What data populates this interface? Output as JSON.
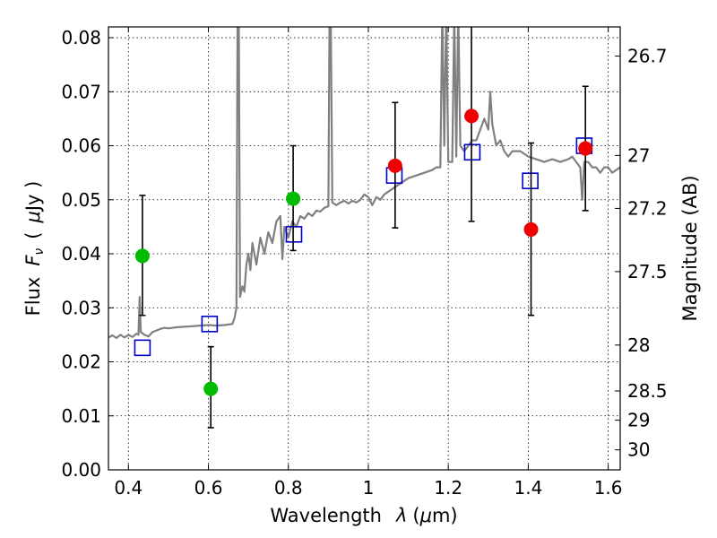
{
  "chart_data": {
    "type": "scatter",
    "title": "",
    "xlabel": "Wavelength",
    "xlabel_symbol": "λ",
    "xlabel_unit_open": "(",
    "xlabel_unit_mu": "μ",
    "xlabel_unit_rest": "m)",
    "ylabel": "Flux",
    "ylabel_symbol": "F",
    "ylabel_subscript": "ν",
    "ylabel_unit_open": "(",
    "ylabel_unit_mu": "μ",
    "ylabel_unit_rest": "Jy )",
    "y2label": "Magnitude (AB)",
    "xlim": [
      0.35,
      1.63
    ],
    "ylim": [
      0.0,
      0.082
    ],
    "grid": true,
    "xticks": [
      {
        "value": 0.4,
        "label": "0.4"
      },
      {
        "value": 0.6,
        "label": "0.6"
      },
      {
        "value": 0.8,
        "label": "0.8"
      },
      {
        "value": 1.0,
        "label": "1"
      },
      {
        "value": 1.2,
        "label": "1.2"
      },
      {
        "value": 1.4,
        "label": "1.4"
      },
      {
        "value": 1.6,
        "label": "1.6"
      }
    ],
    "yticks": [
      {
        "value": 0.0,
        "label": "0.00"
      },
      {
        "value": 0.01,
        "label": "0.01"
      },
      {
        "value": 0.02,
        "label": "0.02"
      },
      {
        "value": 0.03,
        "label": "0.03"
      },
      {
        "value": 0.04,
        "label": "0.04"
      },
      {
        "value": 0.05,
        "label": "0.05"
      },
      {
        "value": 0.06,
        "label": "0.06"
      },
      {
        "value": 0.07,
        "label": "0.07"
      },
      {
        "value": 0.08,
        "label": "0.08"
      }
    ],
    "magnitude_ticks": [
      {
        "label": "26.7",
        "flux": 0.0766
      },
      {
        "label": "27",
        "flux": 0.0582
      },
      {
        "label": "27.2",
        "flux": 0.0484
      },
      {
        "label": "27.5",
        "flux": 0.0367
      },
      {
        "label": "28",
        "flux": 0.0231
      },
      {
        "label": "28.5",
        "flux": 0.0146
      },
      {
        "label": "29",
        "flux": 0.0092
      },
      {
        "label": "30",
        "flux": 0.0037
      }
    ],
    "series": [
      {
        "kind": "spectrum",
        "color": "#808080",
        "points": [
          [
            0.35,
            0.0245
          ],
          [
            0.36,
            0.0249
          ],
          [
            0.37,
            0.0244
          ],
          [
            0.38,
            0.025
          ],
          [
            0.39,
            0.0245
          ],
          [
            0.4,
            0.025
          ],
          [
            0.41,
            0.0246
          ],
          [
            0.42,
            0.0252
          ],
          [
            0.425,
            0.025
          ],
          [
            0.428,
            0.032
          ],
          [
            0.431,
            0.0255
          ],
          [
            0.44,
            0.025
          ],
          [
            0.45,
            0.0247
          ],
          [
            0.46,
            0.0255
          ],
          [
            0.47,
            0.0258
          ],
          [
            0.48,
            0.0261
          ],
          [
            0.49,
            0.0263
          ],
          [
            0.5,
            0.0262
          ],
          [
            0.52,
            0.0264
          ],
          [
            0.54,
            0.0265
          ],
          [
            0.56,
            0.0266
          ],
          [
            0.58,
            0.0267
          ],
          [
            0.6,
            0.0268
          ],
          [
            0.62,
            0.0267
          ],
          [
            0.64,
            0.0268
          ],
          [
            0.66,
            0.027
          ],
          [
            0.665,
            0.028
          ],
          [
            0.67,
            0.03
          ],
          [
            0.673,
            0.085
          ],
          [
            0.676,
            0.085
          ],
          [
            0.679,
            0.032
          ],
          [
            0.685,
            0.034
          ],
          [
            0.69,
            0.033
          ],
          [
            0.695,
            0.038
          ],
          [
            0.7,
            0.04
          ],
          [
            0.705,
            0.037
          ],
          [
            0.71,
            0.042
          ],
          [
            0.72,
            0.038
          ],
          [
            0.73,
            0.043
          ],
          [
            0.74,
            0.04
          ],
          [
            0.75,
            0.044
          ],
          [
            0.76,
            0.042
          ],
          [
            0.77,
            0.046
          ],
          [
            0.78,
            0.047
          ],
          [
            0.785,
            0.039
          ],
          [
            0.79,
            0.045
          ],
          [
            0.8,
            0.043
          ],
          [
            0.81,
            0.046
          ],
          [
            0.82,
            0.045
          ],
          [
            0.83,
            0.047
          ],
          [
            0.84,
            0.0465
          ],
          [
            0.85,
            0.0475
          ],
          [
            0.86,
            0.047
          ],
          [
            0.87,
            0.048
          ],
          [
            0.88,
            0.0478
          ],
          [
            0.89,
            0.0485
          ],
          [
            0.9,
            0.0488
          ],
          [
            0.903,
            0.085
          ],
          [
            0.906,
            0.085
          ],
          [
            0.91,
            0.0495
          ],
          [
            0.92,
            0.049
          ],
          [
            0.93,
            0.0495
          ],
          [
            0.94,
            0.0498
          ],
          [
            0.95,
            0.0493
          ],
          [
            0.96,
            0.0498
          ],
          [
            0.97,
            0.0495
          ],
          [
            0.98,
            0.05
          ],
          [
            0.99,
            0.051
          ],
          [
            1.0,
            0.0505
          ],
          [
            1.01,
            0.049
          ],
          [
            1.02,
            0.0505
          ],
          [
            1.03,
            0.05
          ],
          [
            1.04,
            0.051
          ],
          [
            1.05,
            0.0515
          ],
          [
            1.06,
            0.052
          ],
          [
            1.07,
            0.0525
          ],
          [
            1.08,
            0.053
          ],
          [
            1.09,
            0.0535
          ],
          [
            1.1,
            0.054
          ],
          [
            1.12,
            0.0545
          ],
          [
            1.14,
            0.055
          ],
          [
            1.16,
            0.0555
          ],
          [
            1.17,
            0.056
          ],
          [
            1.18,
            0.056
          ],
          [
            1.185,
            0.085
          ],
          [
            1.19,
            0.06
          ],
          [
            1.195,
            0.085
          ],
          [
            1.2,
            0.057
          ],
          [
            1.21,
            0.057
          ],
          [
            1.215,
            0.085
          ],
          [
            1.22,
            0.058
          ],
          [
            1.225,
            0.085
          ],
          [
            1.23,
            0.06
          ],
          [
            1.24,
            0.059
          ],
          [
            1.25,
            0.06
          ],
          [
            1.26,
            0.061
          ],
          [
            1.27,
            0.061
          ],
          [
            1.28,
            0.063
          ],
          [
            1.29,
            0.065
          ],
          [
            1.295,
            0.064
          ],
          [
            1.3,
            0.063
          ],
          [
            1.305,
            0.07
          ],
          [
            1.31,
            0.064
          ],
          [
            1.32,
            0.06
          ],
          [
            1.33,
            0.061
          ],
          [
            1.34,
            0.059
          ],
          [
            1.35,
            0.058
          ],
          [
            1.36,
            0.059
          ],
          [
            1.38,
            0.059
          ],
          [
            1.4,
            0.058
          ],
          [
            1.42,
            0.0575
          ],
          [
            1.44,
            0.057
          ],
          [
            1.46,
            0.0575
          ],
          [
            1.48,
            0.057
          ],
          [
            1.5,
            0.0575
          ],
          [
            1.51,
            0.058
          ],
          [
            1.52,
            0.057
          ],
          [
            1.53,
            0.056
          ],
          [
            1.535,
            0.05
          ],
          [
            1.54,
            0.057
          ],
          [
            1.55,
            0.057
          ],
          [
            1.56,
            0.056
          ],
          [
            1.57,
            0.056
          ],
          [
            1.58,
            0.055
          ],
          [
            1.59,
            0.056
          ],
          [
            1.6,
            0.056
          ],
          [
            1.61,
            0.055
          ],
          [
            1.62,
            0.0555
          ],
          [
            1.63,
            0.056
          ]
        ]
      },
      {
        "kind": "model-photometry",
        "color": "#0000cc",
        "marker": "open-square",
        "points": [
          [
            0.435,
            0.0226
          ],
          [
            0.603,
            0.027
          ],
          [
            0.814,
            0.0436
          ],
          [
            1.065,
            0.0545
          ],
          [
            1.26,
            0.0588
          ],
          [
            1.405,
            0.0535
          ],
          [
            1.54,
            0.06
          ]
        ]
      },
      {
        "kind": "observed-photometry",
        "marker": "filled-circle",
        "points": [
          {
            "x": 0.435,
            "y": 0.0396,
            "err_low": 0.0286,
            "err_high": 0.0508,
            "color": "#00bb00"
          },
          {
            "x": 0.606,
            "y": 0.015,
            "err_low": 0.0078,
            "err_high": 0.0228,
            "color": "#00bb00"
          },
          {
            "x": 0.812,
            "y": 0.0502,
            "err_low": 0.0406,
            "err_high": 0.06,
            "color": "#00bb00"
          },
          {
            "x": 1.067,
            "y": 0.0563,
            "err_low": 0.0448,
            "err_high": 0.068,
            "color": "#ee0000"
          },
          {
            "x": 1.258,
            "y": 0.0655,
            "err_low": 0.046,
            "err_high": 0.085,
            "color": "#ee0000"
          },
          {
            "x": 1.407,
            "y": 0.0445,
            "err_low": 0.0286,
            "err_high": 0.0605,
            "color": "#ee0000"
          },
          {
            "x": 1.543,
            "y": 0.0595,
            "err_low": 0.048,
            "err_high": 0.071,
            "color": "#ee0000"
          }
        ]
      }
    ]
  }
}
